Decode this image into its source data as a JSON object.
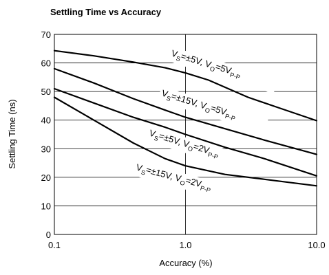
{
  "chart_data": {
    "type": "line",
    "title": "Settling Time vs Accuracy",
    "xlabel": "Accuracy (%)",
    "ylabel": "Settling Time (ns)",
    "xscale": "log",
    "xlim": [
      0.1,
      10.0
    ],
    "ylim": [
      0,
      70
    ],
    "xticks": [
      "0.1",
      "1.0",
      "10.0"
    ],
    "yticks": [
      "0",
      "10",
      "20",
      "30",
      "40",
      "50",
      "60",
      "70"
    ],
    "grid": true,
    "series": [
      {
        "name": "VS=±5V, VO=5VP-P",
        "label_parts": [
          [
            "V",
            ""
          ],
          [
            "S",
            "sub"
          ],
          [
            "=±5V, V",
            ""
          ],
          [
            "O",
            "sub"
          ],
          [
            "=5V",
            ""
          ],
          [
            "P-P",
            "sub"
          ]
        ],
        "x": [
          0.1,
          0.2,
          0.4,
          0.7,
          1.0,
          1.5,
          2.0,
          3.0,
          5.0,
          10.0
        ],
        "y": [
          64.3,
          62.5,
          60.3,
          58.3,
          56.5,
          54.0,
          51.5,
          48.0,
          44.5,
          39.8
        ]
      },
      {
        "name": "VS=±15V, VO=5VP-P",
        "label_parts": [
          [
            "V",
            ""
          ],
          [
            "S",
            "sub"
          ],
          [
            "=±15V, V",
            ""
          ],
          [
            "O",
            "sub"
          ],
          [
            "=5V",
            ""
          ],
          [
            "P-P",
            "sub"
          ]
        ],
        "x": [
          0.1,
          0.2,
          0.4,
          0.7,
          1.0,
          2.0,
          4.0,
          10.0
        ],
        "y": [
          58.0,
          53.0,
          47.5,
          43.5,
          41.0,
          37.0,
          33.0,
          28.0
        ]
      },
      {
        "name": "VS=±5V, VO=2VP-P",
        "label_parts": [
          [
            "V",
            ""
          ],
          [
            "S",
            "sub"
          ],
          [
            "=±5V, V",
            ""
          ],
          [
            "O",
            "sub"
          ],
          [
            "=2V",
            ""
          ],
          [
            "P-P",
            "sub"
          ]
        ],
        "x": [
          0.1,
          0.2,
          0.4,
          0.7,
          1.0,
          2.0,
          4.0,
          10.0
        ],
        "y": [
          51.0,
          46.0,
          41.0,
          37.5,
          35.0,
          30.5,
          26.5,
          20.5
        ]
      },
      {
        "name": "VS=±15V, VO=2VP-P",
        "label_parts": [
          [
            "V",
            ""
          ],
          [
            "S",
            "sub"
          ],
          [
            "=±15V, V",
            ""
          ],
          [
            "O",
            "sub"
          ],
          [
            "=2V",
            ""
          ],
          [
            "P-P",
            "sub"
          ]
        ],
        "x": [
          0.1,
          0.2,
          0.4,
          0.7,
          1.0,
          2.0,
          4.0,
          10.0
        ],
        "y": [
          48.0,
          40.0,
          32.0,
          26.5,
          24.0,
          21.0,
          19.3,
          17.0
        ]
      }
    ]
  }
}
